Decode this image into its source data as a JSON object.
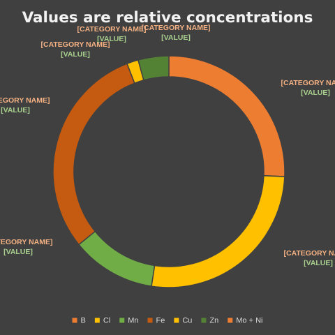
{
  "chart_data": {
    "type": "doughnut",
    "title": "Values are relative concentrations",
    "series": [
      {
        "name": "",
        "categories": [
          "Mo + Ni",
          "B",
          "Cl",
          "Mn",
          "Fe",
          "Cu",
          "Zn"
        ],
        "values": [
          24,
          25,
          11,
          28,
          1.5,
          4,
          0
        ],
        "colors": [
          "#ed7d31",
          "#ffc000",
          "#70ad47",
          "#c55a11",
          "#ffc000",
          "#548235",
          "#ed7d31"
        ],
        "data_labels": [
          {
            "name": "[CATEGORY NAME]",
            "value": "[VALUE]"
          },
          {
            "name": "[CATEGORY NAME]",
            "value": "[VALUE]"
          },
          {
            "name": "[CATEGORY NAME]",
            "value": "[VALUE]"
          },
          {
            "name": "[CATEGORY NAME]",
            "value": "[VALUE]"
          },
          {
            "name": "[CATEGORY NAME]",
            "value": "[VALUE]"
          },
          {
            "name": "[CATEGORY NAME]",
            "value": "[VALUE]"
          },
          {
            "name": "[CATEGORY NAME]",
            "value": "[VALUE]"
          }
        ]
      }
    ],
    "legend": {
      "position": "bottom",
      "entries": [
        {
          "label": "B",
          "color": "#ed7d31"
        },
        {
          "label": "Cl",
          "color": "#ffc000"
        },
        {
          "label": "Mn",
          "color": "#70ad47"
        },
        {
          "label": "Fe",
          "color": "#c55a11"
        },
        {
          "label": "Cu",
          "color": "#ffc000"
        },
        {
          "label": "Zn",
          "color": "#548235"
        },
        {
          "label": "Mo + Ni",
          "color": "#ed7d31"
        }
      ]
    }
  },
  "colors": {
    "background": "#404040",
    "title": "#f2f2f2",
    "label_name": "#f4b183",
    "label_value": "#a9d18e",
    "slice_border": "#404040"
  }
}
